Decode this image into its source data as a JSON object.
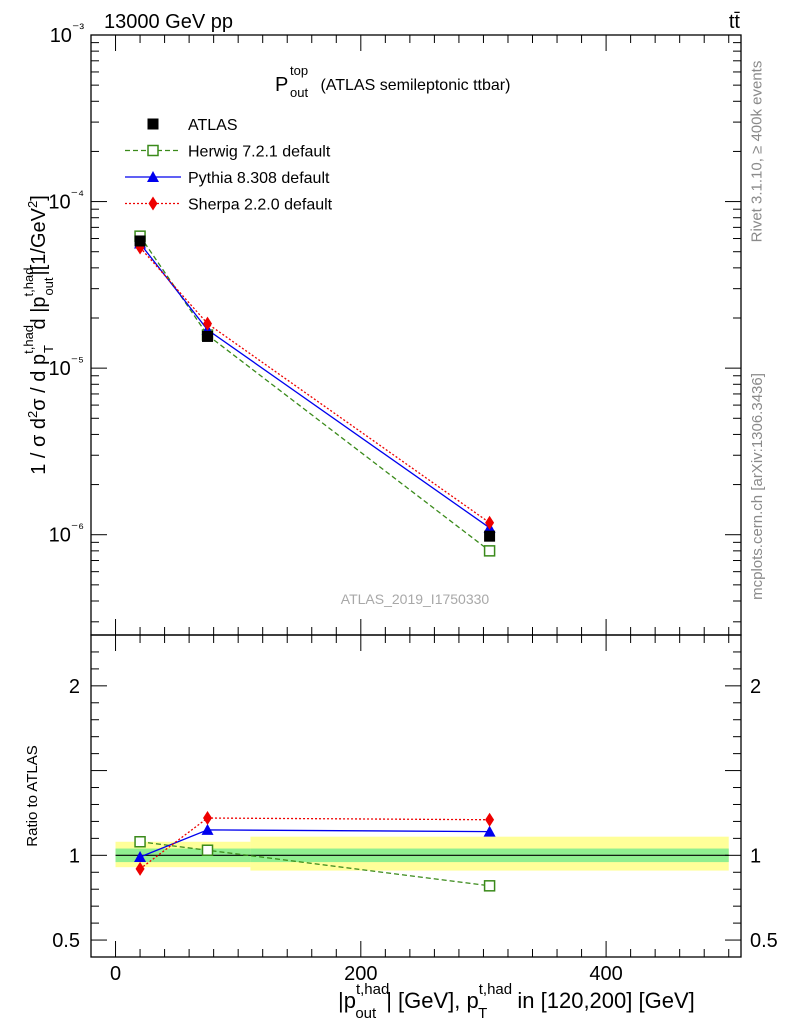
{
  "header": {
    "left": "13000 GeV pp",
    "right": "tt̄"
  },
  "side_labels": {
    "rivet": "Rivet 3.1.10, ≥ 400k events",
    "mcplots": "mcplots.cern.ch [arXiv:1306.3436]"
  },
  "chart_data": [
    {
      "type": "line",
      "panel": "main",
      "title": {
        "symbol": "P",
        "sup": "top",
        "sub": "out",
        "rest": " (ATLAS semileptonic ttbar)"
      },
      "watermark": "ATLAS_2019_I1750330",
      "ylabel": "1 / σ d²σ / d p_T^{t,had} d |p_out^{t,had}|[1/GeV²]",
      "yscale": "log",
      "ylim": [
        2.5e-07,
        0.001
      ],
      "xlim": [
        -20,
        510
      ],
      "ytick_labels": [
        "10⁻⁶",
        "10⁻⁵",
        "10⁻⁴",
        "10⁻³"
      ],
      "legend_position": "top-left",
      "x": [
        20,
        75,
        305
      ],
      "series": [
        {
          "name": "ATLAS",
          "style": "data",
          "color": "#000000",
          "values": [
            5.8e-05,
            1.55e-05,
            9.8e-07
          ]
        },
        {
          "name": "Herwig 7.2.1 default",
          "style": "dashed-open-square",
          "color": "#3a8a1a",
          "values": [
            6.2e-05,
            1.58e-05,
            8e-07
          ]
        },
        {
          "name": "Pythia 8.308 default",
          "style": "solid-triangle",
          "color": "#0000ee",
          "values": [
            5.6e-05,
            1.7e-05,
            1.1e-06
          ]
        },
        {
          "name": "Sherpa 2.2.0 default",
          "style": "dotted-diamond",
          "color": "#ee0000",
          "values": [
            5.3e-05,
            1.85e-05,
            1.18e-06
          ]
        }
      ]
    },
    {
      "type": "line",
      "panel": "ratio",
      "ylabel": "Ratio to ATLAS",
      "xlabel": "|p_out^{t,had}| [GeV], p_T^{t,had} in [120,200] [GeV]",
      "ylim": [
        0.4,
        2.3
      ],
      "xlim": [
        -20,
        510
      ],
      "ytick_labels": [
        "0.5",
        "1",
        "2"
      ],
      "xtick_labels": [
        "0",
        "200",
        "400"
      ],
      "x": [
        20,
        75,
        305
      ],
      "bands": [
        {
          "x_range": [
            0,
            110
          ],
          "stat": [
            0.96,
            1.04
          ],
          "total": [
            0.93,
            1.08
          ]
        },
        {
          "x_range": [
            110,
            500
          ],
          "stat": [
            0.96,
            1.04
          ],
          "total": [
            0.91,
            1.11
          ]
        }
      ],
      "series": [
        {
          "name": "Herwig 7.2.1 default",
          "color": "#3a8a1a",
          "values": [
            1.08,
            1.03,
            0.82
          ]
        },
        {
          "name": "Pythia 8.308 default",
          "color": "#0000ee",
          "values": [
            0.99,
            1.15,
            1.14
          ]
        },
        {
          "name": "Sherpa 2.2.0 default",
          "color": "#ee0000",
          "values": [
            0.92,
            1.22,
            1.21
          ]
        }
      ]
    }
  ]
}
